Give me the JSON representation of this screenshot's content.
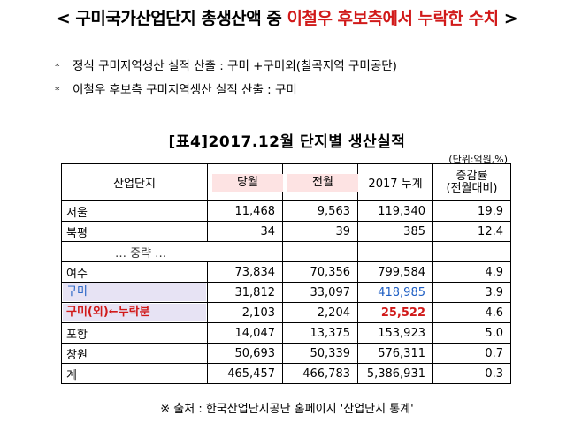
{
  "header": {
    "prefix": "< 구미국가산업단지 총생산액 중 ",
    "highlight": "이철우 후보측에서 누락한 수치",
    "suffix": " >"
  },
  "bullets": [
    {
      "star": "*",
      "text": "정식 구미지역생산 실적 산출 : 구미 +구미외(칠곡지역 구미공단)"
    },
    {
      "star": "*",
      "text": "이철우 후보측 구미지역생산 실적 산출 : 구미"
    }
  ],
  "table_title": "[표4]2017.12월 단지별 생산실적",
  "unit": "(단위:억원,%)",
  "columns": [
    "산업단지",
    "당월",
    "전월",
    "2017 누계",
    "증감률\n(전월대비)"
  ],
  "rows_top": [
    {
      "name": "서울",
      "cur": "11,468",
      "prev": "9,563",
      "total": "119,340",
      "rate": "19.9"
    },
    {
      "name": "북평",
      "cur": "34",
      "prev": "39",
      "total": "385",
      "rate": "12.4"
    }
  ],
  "gap_label": "… 중략 …",
  "rows_bottom": [
    {
      "name": "여수",
      "cur": "73,834",
      "prev": "70,356",
      "total": "799,584",
      "rate": "4.9"
    },
    {
      "name": "구미",
      "cur": "31,812",
      "prev": "33,097",
      "total": "418,985",
      "rate": "3.9"
    },
    {
      "name": "구미(외)←누락분",
      "cur": "2,103",
      "prev": "2,204",
      "total": "25,522",
      "rate": "4.6"
    },
    {
      "name": "포항",
      "cur": "14,047",
      "prev": "13,375",
      "total": "153,923",
      "rate": "5.0"
    },
    {
      "name": "창원",
      "cur": "50,693",
      "prev": "50,339",
      "total": "576,311",
      "rate": "0.7"
    },
    {
      "name": "계",
      "cur": "465,457",
      "prev": "466,783",
      "total": "5,386,931",
      "rate": "0.3"
    }
  ],
  "source": "※ 출처 : 한국산업단지공단 홈페이지 '산업단지 통계'"
}
